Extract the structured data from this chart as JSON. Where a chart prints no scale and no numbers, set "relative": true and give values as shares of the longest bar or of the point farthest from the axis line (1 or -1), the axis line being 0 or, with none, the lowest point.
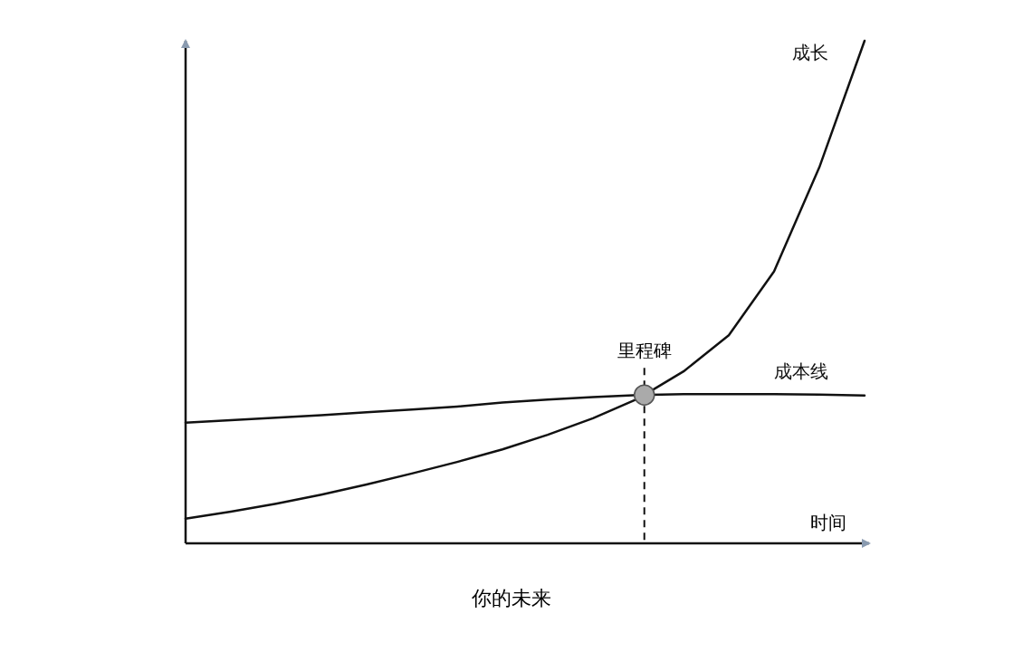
{
  "chart_data": {
    "type": "line",
    "title": "你的未来",
    "xlabel": "时间",
    "relative": true,
    "categories": [
      null,
      null,
      null,
      null,
      null,
      null,
      null,
      null,
      null,
      null,
      null,
      null,
      null,
      null,
      null,
      null
    ],
    "series": [
      {
        "name": "成长",
        "color": "#111111",
        "values": [
          0.049,
          0.063,
          0.079,
          0.097,
          0.117,
          0.139,
          0.162,
          0.187,
          0.216,
          0.249,
          0.288,
          0.342,
          0.414,
          0.541,
          0.748,
          1
        ]
      },
      {
        "name": "成本线",
        "color": "#111111",
        "values": [
          0.24,
          0.245,
          0.25,
          0.255,
          0.261,
          0.266,
          0.272,
          0.28,
          0.286,
          0.291,
          0.295,
          0.297,
          0.297,
          0.297,
          0.296,
          0.294
        ]
      }
    ],
    "annotations": [
      "里程碑"
    ]
  }
}
